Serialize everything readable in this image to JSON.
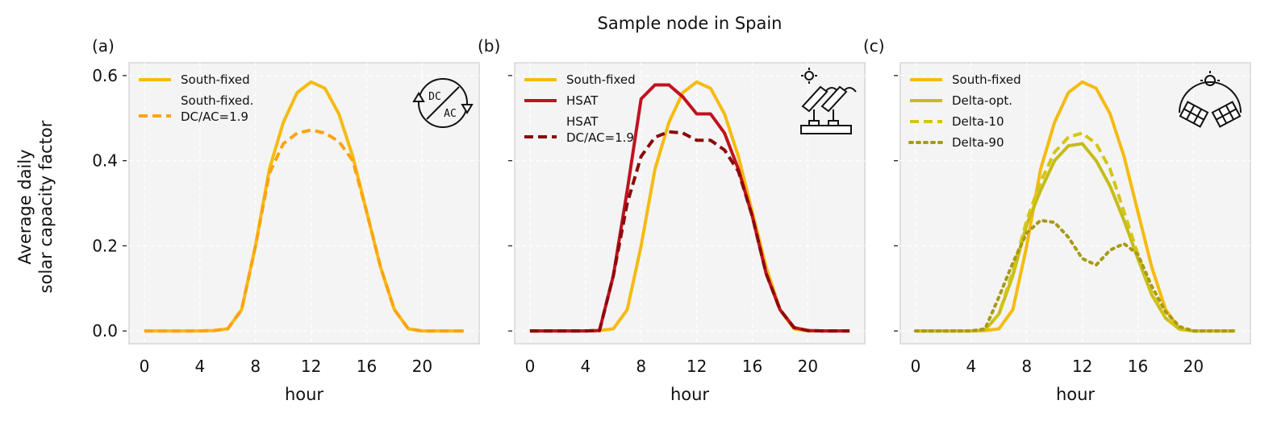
{
  "figure": {
    "title": "Sample node in Spain",
    "ylabel_line1": "Average daily",
    "ylabel_line2": "solar capacity factor"
  },
  "chart_data": [
    {
      "type": "line",
      "panel_label": "(a)",
      "xlabel": "hour",
      "ylabel": "Average daily solar capacity factor",
      "xlim": [
        -1.1,
        24.1
      ],
      "ylim": [
        -0.03,
        0.63
      ],
      "xticks": [
        0,
        4,
        8,
        12,
        16,
        20
      ],
      "yticks": [
        0.0,
        0.2,
        0.4,
        0.6
      ],
      "ytick_labels": [
        "0.0",
        "0.2",
        "0.4",
        "0.6"
      ],
      "grid": true,
      "legend_position": "upper-left",
      "icon": "dc-ac-converter-icon",
      "x": [
        0,
        1,
        2,
        3,
        4,
        5,
        6,
        7,
        8,
        9,
        10,
        11,
        12,
        13,
        14,
        15,
        16,
        17,
        18,
        19,
        20,
        21,
        22,
        23
      ],
      "series": [
        {
          "name": "South-fixed",
          "color": "#f5bb12",
          "dash": "solid",
          "values": [
            0,
            0,
            0,
            0,
            0,
            0.001,
            0.005,
            0.05,
            0.2,
            0.38,
            0.49,
            0.56,
            0.585,
            0.57,
            0.51,
            0.41,
            0.28,
            0.15,
            0.05,
            0.005,
            0,
            0,
            0,
            0
          ]
        },
        {
          "name": "South-fixed.\nDC/AC=1.9",
          "color": "#fca311",
          "dash": "dashed",
          "values": [
            0,
            0,
            0,
            0,
            0,
            0.001,
            0.005,
            0.05,
            0.2,
            0.37,
            0.44,
            0.465,
            0.472,
            0.465,
            0.445,
            0.4,
            0.28,
            0.15,
            0.05,
            0.005,
            0,
            0,
            0,
            0
          ]
        }
      ]
    },
    {
      "type": "line",
      "panel_label": "(b)",
      "xlabel": "hour",
      "xlim": [
        -1.1,
        24.1
      ],
      "ylim": [
        -0.03,
        0.63
      ],
      "xticks": [
        0,
        4,
        8,
        12,
        16,
        20
      ],
      "grid": true,
      "legend_position": "upper-left",
      "icon": "tracking-panels-icon",
      "x": [
        0,
        1,
        2,
        3,
        4,
        5,
        6,
        7,
        8,
        9,
        10,
        11,
        12,
        13,
        14,
        15,
        16,
        17,
        18,
        19,
        20,
        21,
        22,
        23
      ],
      "series": [
        {
          "name": "South-fixed",
          "color": "#f5bb12",
          "dash": "solid",
          "values": [
            0,
            0,
            0,
            0,
            0,
            0.001,
            0.005,
            0.05,
            0.2,
            0.38,
            0.49,
            0.56,
            0.585,
            0.57,
            0.51,
            0.41,
            0.28,
            0.15,
            0.05,
            0.005,
            0,
            0,
            0,
            0
          ]
        },
        {
          "name": "HSAT",
          "color": "#c1121f",
          "dash": "solid",
          "values": [
            0,
            0,
            0,
            0,
            0,
            0.001,
            0.13,
            0.33,
            0.545,
            0.578,
            0.578,
            0.55,
            0.51,
            0.51,
            0.465,
            0.38,
            0.27,
            0.135,
            0.05,
            0.008,
            0.001,
            0,
            0,
            0
          ]
        },
        {
          "name": "HSAT\nDC/AC=1.9",
          "color": "#8b0a0a",
          "dash": "dashed",
          "values": [
            0,
            0,
            0,
            0,
            0,
            0.001,
            0.13,
            0.3,
            0.41,
            0.455,
            0.468,
            0.465,
            0.448,
            0.448,
            0.425,
            0.375,
            0.27,
            0.135,
            0.05,
            0.008,
            0.001,
            0,
            0,
            0
          ]
        }
      ]
    },
    {
      "type": "line",
      "panel_label": "(c)",
      "xlabel": "hour",
      "xlim": [
        -1.1,
        24.1
      ],
      "ylim": [
        -0.03,
        0.63
      ],
      "xticks": [
        0,
        4,
        8,
        12,
        16,
        20
      ],
      "grid": true,
      "legend_position": "upper-left",
      "icon": "delta-panels-icon",
      "x": [
        0,
        1,
        2,
        3,
        4,
        5,
        6,
        7,
        8,
        9,
        10,
        11,
        12,
        13,
        14,
        15,
        16,
        17,
        18,
        19,
        20,
        21,
        22,
        23
      ],
      "series": [
        {
          "name": "South-fixed",
          "color": "#f5bb12",
          "dash": "solid",
          "values": [
            0,
            0,
            0,
            0,
            0,
            0.001,
            0.005,
            0.05,
            0.2,
            0.38,
            0.49,
            0.56,
            0.585,
            0.57,
            0.51,
            0.41,
            0.28,
            0.15,
            0.05,
            0.005,
            0,
            0,
            0,
            0
          ]
        },
        {
          "name": "Delta-opt.",
          "color": "#c5bc1c",
          "dash": "solid",
          "values": [
            0,
            0,
            0,
            0,
            0,
            0.002,
            0.04,
            0.13,
            0.25,
            0.33,
            0.4,
            0.435,
            0.44,
            0.4,
            0.34,
            0.26,
            0.17,
            0.085,
            0.03,
            0.004,
            0,
            0,
            0,
            0
          ]
        },
        {
          "name": "Delta-10",
          "color": "#d4c512",
          "dash": "dashed",
          "values": [
            0,
            0,
            0,
            0,
            0,
            0.002,
            0.04,
            0.14,
            0.26,
            0.35,
            0.42,
            0.455,
            0.465,
            0.44,
            0.38,
            0.28,
            0.18,
            0.09,
            0.03,
            0.004,
            0,
            0,
            0,
            0
          ]
        },
        {
          "name": "Delta-90",
          "color": "#a89a16",
          "dash": "dotted",
          "values": [
            0,
            0,
            0,
            0,
            0,
            0.005,
            0.08,
            0.16,
            0.23,
            0.26,
            0.255,
            0.22,
            0.17,
            0.155,
            0.19,
            0.205,
            0.18,
            0.105,
            0.045,
            0.01,
            0,
            0,
            0,
            0
          ]
        }
      ]
    }
  ]
}
